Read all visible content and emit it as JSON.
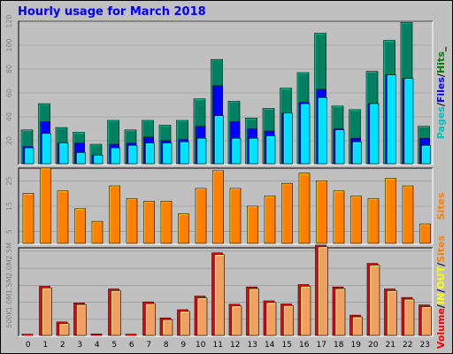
{
  "chart_data": {
    "type": "bar",
    "title": "Hourly usage for March 2018",
    "categories": [
      "0",
      "1",
      "2",
      "3",
      "4",
      "5",
      "6",
      "7",
      "8",
      "9",
      "10",
      "11",
      "12",
      "13",
      "14",
      "15",
      "16",
      "17",
      "18",
      "19",
      "20",
      "21",
      "22",
      "23"
    ],
    "panels": [
      {
        "id": "pages-files-hits",
        "ylim": [
          0,
          120
        ],
        "yticks": [
          20,
          40,
          60,
          80,
          100,
          120
        ],
        "legend": [
          {
            "label": "Pages",
            "color": "#00c0c0"
          },
          {
            "label": "/",
            "color": "#000000"
          },
          {
            "label": "Files",
            "color": "#0000ff"
          },
          {
            "label": "/",
            "color": "#000000"
          },
          {
            "label": "Hits",
            "color": "#008000"
          },
          {
            "label": "_",
            "color": "#000000"
          }
        ],
        "series": [
          {
            "name": "Hits",
            "color": "#008060",
            "values": [
              29,
              51,
              31,
              27,
              17,
              37,
              29,
              37,
              33,
              37,
              55,
              88,
              53,
              39,
              47,
              64,
              77,
              110,
              49,
              46,
              78,
              104,
              119,
              32
            ]
          },
          {
            "name": "Files",
            "color": "#0000ff",
            "values": [
              15,
              36,
              18,
              18,
              8,
              17,
              18,
              23,
              20,
              21,
              32,
              66,
              36,
              30,
              28,
              43,
              52,
              63,
              30,
              22,
              51,
              75,
              72,
              22
            ]
          },
          {
            "name": "Pages",
            "color": "#00e0ff",
            "values": [
              14,
              26,
              18,
              10,
              8,
              14,
              16,
              18,
              18,
              19,
              22,
              41,
              22,
              22,
              24,
              43,
              51,
              56,
              29,
              19,
              51,
              75,
              72,
              16
            ]
          }
        ]
      },
      {
        "id": "sites",
        "ylim": [
          0,
          30
        ],
        "yticks": [
          5,
          15,
          25
        ],
        "legend": [
          {
            "label": "Sites",
            "color": "#ff8000"
          }
        ],
        "series": [
          {
            "name": "Sites",
            "color": "#ff8000",
            "values": [
              20,
              30,
              21,
              14,
              9,
              23,
              18,
              17,
              17,
              12,
              22,
              29,
              22,
              15,
              19,
              24,
              28,
              25,
              21,
              19,
              18,
              26,
              23,
              8
            ]
          }
        ]
      },
      {
        "id": "volume",
        "ylim": [
          0,
          2600
        ],
        "yticks": [
          500,
          1000,
          1500,
          2000,
          2500
        ],
        "ytick_labels": [
          "500K",
          "1.0M",
          "1.5M",
          "2.0M",
          "2.5M"
        ],
        "legend": [
          {
            "label": "Volume",
            "color": "#ff0000"
          },
          {
            "label": "/",
            "color": "#000000"
          },
          {
            "label": "IN",
            "color": "#ffff00"
          },
          {
            "label": "/",
            "color": "#000000"
          },
          {
            "label": "OUT",
            "color": "#ffff00"
          },
          {
            "label": "/",
            "color": "#000000"
          },
          {
            "label": "Sites",
            "color": "#ff8000"
          }
        ],
        "series": [
          {
            "name": "Volume",
            "color": "#e00000",
            "values": [
              60,
              1470,
              420,
              980,
              70,
              1390,
              60,
              1010,
              540,
              780,
              1180,
              2450,
              940,
              1450,
              1040,
              950,
              1520,
              2680,
              1450,
              620,
              2140,
              1390,
              1140,
              920
            ]
          },
          {
            "name": "Out",
            "color": "#f0a060",
            "values": [
              60,
              1470,
              420,
              980,
              70,
              1390,
              60,
              1010,
              540,
              780,
              1180,
              2450,
              940,
              1450,
              1040,
              950,
              1520,
              2680,
              1450,
              620,
              2140,
              1390,
              1140,
              920
            ]
          }
        ]
      }
    ]
  }
}
